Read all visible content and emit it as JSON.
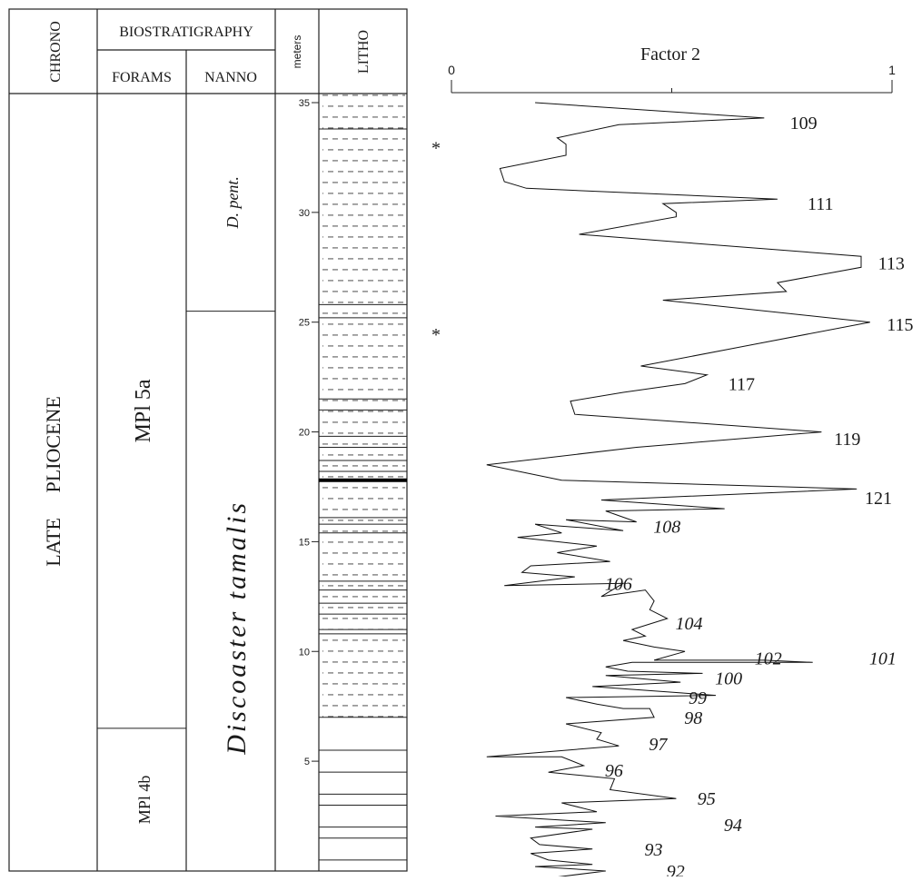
{
  "headers": {
    "chrono": "CHRONO",
    "biostratigraphy": "BIOSTRATIGRAPHY",
    "forams": "FORAMS",
    "nanno": "NANNO",
    "meters": "meters",
    "litho": "LITHO"
  },
  "chrono": {
    "epoch": "LATE     PLIOCENE"
  },
  "forams_zones": [
    {
      "label": "MPl   5a",
      "top_m": 36,
      "bottom_m": 6.5
    },
    {
      "label": "MPl 4b",
      "top_m": 6.5,
      "bottom_m": -1
    }
  ],
  "nanno_zones": [
    {
      "label": "D. pent.",
      "top_m": 36,
      "bottom_m": 25.5
    },
    {
      "label": "Discoaster tamalis",
      "top_m": 25.5,
      "bottom_m": -1
    }
  ],
  "meters_axis": {
    "ticks": [
      "35",
      "30",
      "25",
      "20",
      "15",
      "10",
      "5"
    ],
    "range_m": [
      -1,
      36
    ]
  },
  "markers": [
    "*",
    "*"
  ],
  "marker_depths_m": [
    33,
    24.5
  ],
  "litho": {
    "marl_top_m": 35.5,
    "marl_bottom_m": 7,
    "thin_bed_depths_m": [
      33.8,
      25.8,
      25.2,
      21.5,
      21,
      19.8,
      19.3,
      18.7,
      18.2,
      16.1,
      15.8,
      15.4,
      13.2,
      12.8,
      12.2,
      11.7,
      11,
      10.8
    ],
    "thick_bed_depths_m": [
      17.8
    ],
    "solid_line_depths_m": [
      5.5,
      4.5,
      3.5,
      3.0,
      2.0,
      1.5,
      0.5,
      0
    ]
  },
  "chart_data": {
    "type": "line",
    "title": "Factor 2",
    "xlabel": "",
    "ylabel": "",
    "xlim": [
      0,
      1
    ],
    "x_ticks": [
      "0",
      "1"
    ],
    "ylim": [
      -1,
      36
    ],
    "series": [
      {
        "points": [
          [
            0.19,
            35.0
          ],
          [
            0.71,
            34.3
          ],
          [
            0.38,
            34.0
          ],
          [
            0.24,
            33.4
          ],
          [
            0.26,
            33.1
          ],
          [
            0.26,
            32.6
          ],
          [
            0.11,
            32.0
          ],
          [
            0.12,
            31.4
          ],
          [
            0.17,
            31.1
          ],
          [
            0.74,
            30.6
          ],
          [
            0.48,
            30.4
          ],
          [
            0.51,
            30.0
          ],
          [
            0.51,
            29.8
          ],
          [
            0.29,
            29.0
          ],
          [
            0.93,
            28.0
          ],
          [
            0.93,
            27.5
          ],
          [
            0.74,
            26.8
          ],
          [
            0.76,
            26.4
          ],
          [
            0.48,
            26.0
          ],
          [
            0.95,
            25.0
          ],
          [
            0.43,
            23.0
          ],
          [
            0.58,
            22.6
          ],
          [
            0.53,
            22.2
          ],
          [
            0.39,
            21.8
          ],
          [
            0.27,
            21.4
          ],
          [
            0.28,
            20.8
          ],
          [
            0.84,
            20.0
          ],
          [
            0.42,
            19.3
          ],
          [
            0.08,
            18.5
          ],
          [
            0.25,
            17.8
          ],
          [
            0.92,
            17.4
          ],
          [
            0.34,
            16.9
          ],
          [
            0.62,
            16.5
          ],
          [
            0.35,
            16.4
          ],
          [
            0.42,
            15.9
          ],
          [
            0.26,
            16.0
          ],
          [
            0.39,
            15.5
          ],
          [
            0.19,
            15.8
          ],
          [
            0.25,
            15.4
          ],
          [
            0.15,
            15.2
          ],
          [
            0.33,
            14.8
          ],
          [
            0.24,
            14.5
          ],
          [
            0.36,
            14.1
          ],
          [
            0.18,
            13.9
          ],
          [
            0.16,
            13.6
          ],
          [
            0.28,
            13.4
          ],
          [
            0.12,
            13.0
          ],
          [
            0.39,
            13.1
          ],
          [
            0.34,
            12.5
          ],
          [
            0.44,
            12.8
          ],
          [
            0.46,
            12.3
          ],
          [
            0.45,
            11.9
          ],
          [
            0.49,
            11.5
          ],
          [
            0.41,
            11.0
          ],
          [
            0.44,
            10.7
          ],
          [
            0.39,
            10.5
          ],
          [
            0.46,
            10.2
          ],
          [
            0.53,
            10.0
          ],
          [
            0.46,
            9.6
          ],
          [
            0.71,
            9.6
          ],
          [
            0.82,
            9.5
          ],
          [
            0.41,
            9.5
          ],
          [
            0.35,
            9.3
          ],
          [
            0.4,
            9.1
          ],
          [
            0.57,
            9.0
          ],
          [
            0.35,
            8.9
          ],
          [
            0.52,
            8.6
          ],
          [
            0.32,
            8.4
          ],
          [
            0.6,
            8.0
          ],
          [
            0.26,
            7.9
          ],
          [
            0.33,
            7.6
          ],
          [
            0.39,
            7.4
          ],
          [
            0.45,
            7.4
          ],
          [
            0.46,
            7.0
          ],
          [
            0.26,
            6.7
          ],
          [
            0.34,
            6.3
          ],
          [
            0.33,
            6.0
          ],
          [
            0.38,
            5.7
          ],
          [
            0.08,
            5.2
          ],
          [
            0.25,
            5.2
          ],
          [
            0.3,
            4.8
          ],
          [
            0.22,
            4.5
          ],
          [
            0.37,
            4.2
          ],
          [
            0.36,
            3.7
          ],
          [
            0.51,
            3.3
          ],
          [
            0.25,
            3.1
          ],
          [
            0.33,
            2.7
          ],
          [
            0.1,
            2.5
          ],
          [
            0.35,
            2.2
          ],
          [
            0.19,
            2.0
          ],
          [
            0.32,
            1.9
          ],
          [
            0.18,
            1.5
          ],
          [
            0.2,
            1.2
          ],
          [
            0.32,
            1.0
          ],
          [
            0.18,
            0.8
          ],
          [
            0.22,
            0.5
          ],
          [
            0.32,
            0.3
          ],
          [
            0.19,
            0.2
          ],
          [
            0.35,
            0.0
          ],
          [
            0.15,
            -0.5
          ]
        ]
      }
    ],
    "annotations": [
      {
        "text": "109",
        "x": 0.76,
        "y": 34.1,
        "italic": false
      },
      {
        "text": "111",
        "x": 0.8,
        "y": 30.4,
        "italic": false
      },
      {
        "text": "113",
        "x": 0.96,
        "y": 27.7,
        "italic": false
      },
      {
        "text": "115",
        "x": 0.98,
        "y": 24.9,
        "italic": false
      },
      {
        "text": "117",
        "x": 0.62,
        "y": 22.2,
        "italic": false
      },
      {
        "text": "119",
        "x": 0.86,
        "y": 19.7,
        "italic": false
      },
      {
        "text": "121",
        "x": 0.93,
        "y": 17.0,
        "italic": false
      },
      {
        "text": "108",
        "x": 0.45,
        "y": 15.7,
        "italic": true
      },
      {
        "text": "106",
        "x": 0.34,
        "y": 13.1,
        "italic": true
      },
      {
        "text": "104",
        "x": 0.5,
        "y": 11.3,
        "italic": true
      },
      {
        "text": "102",
        "x": 0.68,
        "y": 9.7,
        "italic": true
      },
      {
        "text": "101",
        "x": 0.94,
        "y": 9.7,
        "italic": true
      },
      {
        "text": "100",
        "x": 0.59,
        "y": 8.8,
        "italic": true
      },
      {
        "text": "99",
        "x": 0.53,
        "y": 7.9,
        "italic": true
      },
      {
        "text": "98",
        "x": 0.52,
        "y": 7.0,
        "italic": true
      },
      {
        "text": "97",
        "x": 0.44,
        "y": 5.8,
        "italic": true
      },
      {
        "text": "96",
        "x": 0.34,
        "y": 4.6,
        "italic": true
      },
      {
        "text": "95",
        "x": 0.55,
        "y": 3.3,
        "italic": true
      },
      {
        "text": "94",
        "x": 0.61,
        "y": 2.1,
        "italic": true
      },
      {
        "text": "93",
        "x": 0.43,
        "y": 1.0,
        "italic": true
      },
      {
        "text": "92",
        "x": 0.48,
        "y": 0.0,
        "italic": true
      }
    ]
  }
}
